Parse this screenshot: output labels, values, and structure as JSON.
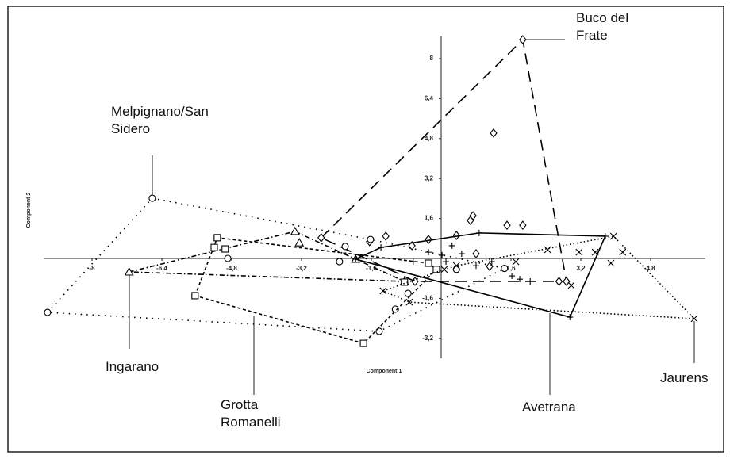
{
  "chart_data": {
    "type": "scatter",
    "x_label": "Component 1",
    "y_label": "Component 2",
    "xlim": [
      -9.1,
      6.05
    ],
    "ylim": [
      -4,
      8.9
    ],
    "color": "#000000",
    "xticks": [
      -8,
      {
        "value": -6.4,
        "label": "-6,4"
      },
      {
        "value": -4.8,
        "label": "-4,8"
      },
      {
        "value": -3.2,
        "label": "-3,2"
      },
      {
        "value": -1.6,
        "label": "-1,6"
      },
      {
        "value": 1.6,
        "label": "1,6"
      },
      {
        "value": 3.2,
        "label": "3,2"
      },
      {
        "value": 4.8,
        "label": "4,8"
      }
    ],
    "yticks": [
      {
        "value": -3.2,
        "label": "-3,2"
      },
      {
        "value": -1.6,
        "label": "-1,6"
      },
      {
        "value": 1.6,
        "label": "1,6"
      },
      {
        "value": 3.2,
        "label": "3,2"
      },
      {
        "value": 4.8,
        "label": "4,8"
      },
      {
        "value": 6.4,
        "label": "6,4"
      },
      8
    ],
    "series": [
      {
        "name": "Buco del Frate",
        "marker": "diamond",
        "line_style": "long-dash",
        "x": [
          1.87,
          -2.75,
          -0.6,
          2.87,
          1.2,
          0.73,
          0.67,
          0.35,
          1.51,
          1.87,
          -1.27,
          -1.64,
          -0.29,
          -0.67,
          0.8,
          1.11,
          2.7
        ],
        "y": [
          8.76,
          0.83,
          -0.92,
          -0.92,
          5.02,
          1.71,
          1.52,
          0.92,
          1.33,
          1.33,
          0.89,
          0.67,
          0.76,
          0.51,
          0.19,
          -0.32,
          -0.92
        ]
      },
      {
        "name": "Melpignano/San Sidero",
        "marker": "circle",
        "line_style": "dotted",
        "x": [
          -6.62,
          -9.02,
          -1.42,
          -2.2,
          -1.62,
          -4.89,
          -2.33,
          -0.76,
          -1.05,
          -0.29,
          0.35,
          1.45
        ],
        "y": [
          2.41,
          -2.16,
          -2.92,
          0.48,
          0.76,
          0,
          -0.13,
          -1.4,
          -2.03,
          -0.19,
          -0.44,
          -0.4
        ]
      },
      {
        "name": "Ingarano",
        "marker": "triangle",
        "line_style": "dash-dot",
        "x": [
          -7.15,
          -3.35,
          -3.25,
          -0.84,
          -1.96
        ],
        "y": [
          -0.54,
          1.08,
          0.63,
          -0.92,
          -0.03
        ]
      },
      {
        "name": "Grotta Romanelli",
        "marker": "square",
        "line_style": "short-dash",
        "x": [
          -5.64,
          -5.13,
          -5.2,
          -4.95,
          -1.78,
          -0.84,
          -0.29,
          -0.11
        ],
        "y": [
          -1.49,
          0.83,
          0.44,
          0.38,
          -3.4,
          -0.95,
          -0.19,
          -0.44
        ]
      },
      {
        "name": "Avetrana",
        "marker": "plus",
        "line_style": "solid",
        "x": [
          -1.96,
          0.87,
          3.76,
          2.95,
          -0.29,
          0.02,
          0.11,
          0.47,
          0.8,
          1.62,
          1.8,
          2.04,
          -1.38,
          -0.64,
          1.16,
          0.25
        ],
        "y": [
          -0.03,
          1.02,
          0.89,
          -2.35,
          0.25,
          0.13,
          -0.13,
          0.19,
          -0.29,
          -0.7,
          -0.83,
          -0.92,
          0.44,
          -0.13,
          -0.13,
          0.51
        ]
      },
      {
        "name": "Jaurens",
        "marker": "cross",
        "line_style": "fine-dot",
        "x": [
          5.8,
          3.95,
          -1.33,
          -0.73,
          2.44,
          3.16,
          3.53,
          3.89,
          4.16,
          2.98,
          1.71,
          0.07,
          0.35
        ],
        "y": [
          -2.41,
          0.89,
          -1.3,
          -1.75,
          0.35,
          0.25,
          0.25,
          -0.19,
          0.25,
          -1.08,
          -0.13,
          -0.44,
          -0.29
        ]
      }
    ]
  }
}
